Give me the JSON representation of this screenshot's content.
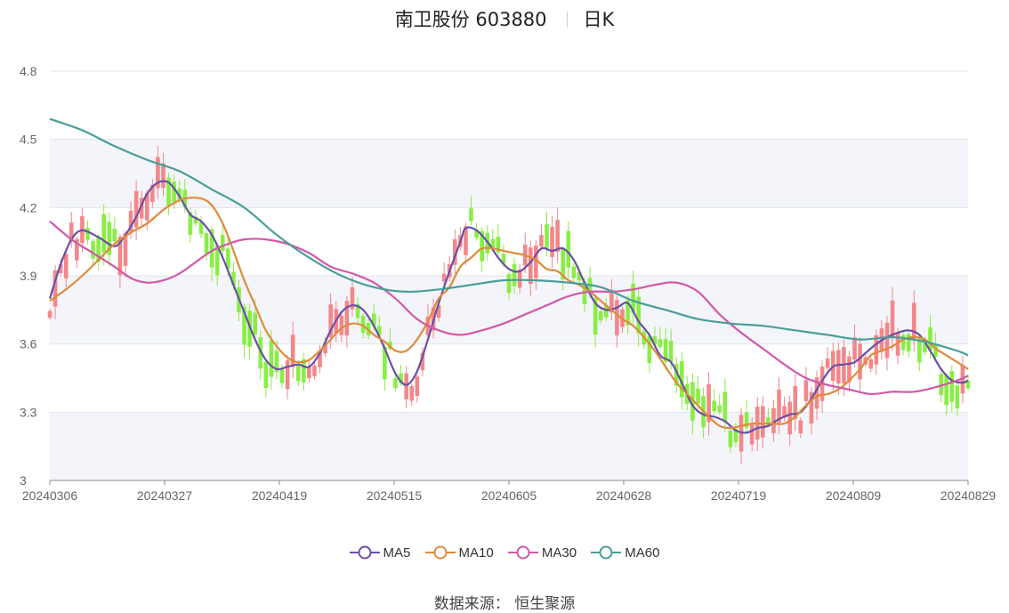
{
  "header": {
    "stock": "南卫股份 603880",
    "period": "日K"
  },
  "footer": {
    "label": "数据来源：",
    "source": "恒生聚源"
  },
  "chart_data": {
    "type": "candlestick",
    "y_ticks": [
      "3",
      "3.3",
      "3.6",
      "3.9",
      "4.2",
      "4.5",
      "4.8"
    ],
    "ylim": [
      3,
      4.8
    ],
    "x_ticks": [
      "20240306",
      "20240327",
      "20240419",
      "20240515",
      "20240605",
      "20240628",
      "20240719",
      "20240809",
      "20240829"
    ],
    "up_color": "#f2878a",
    "down_color": "#88ee44",
    "band_color": "#f4f5fa",
    "series": [
      {
        "name": "MA5",
        "color": "#6b4fa8",
        "points": [
          [
            0,
            3.8
          ],
          [
            2,
            3.95
          ],
          [
            4,
            4.06
          ],
          [
            6,
            4.1
          ],
          [
            9,
            4.07
          ],
          [
            12,
            4.03
          ],
          [
            14,
            4.08
          ],
          [
            16,
            4.16
          ],
          [
            18,
            4.26
          ],
          [
            20,
            4.31
          ],
          [
            22,
            4.31
          ],
          [
            24,
            4.25
          ],
          [
            26,
            4.17
          ],
          [
            28,
            4.14
          ],
          [
            30,
            4.08
          ],
          [
            32,
            3.98
          ],
          [
            34,
            3.86
          ],
          [
            36,
            3.74
          ],
          [
            38,
            3.62
          ],
          [
            40,
            3.53
          ],
          [
            42,
            3.49
          ],
          [
            44,
            3.5
          ],
          [
            46,
            3.51
          ],
          [
            48,
            3.5
          ],
          [
            50,
            3.56
          ],
          [
            52,
            3.66
          ],
          [
            54,
            3.74
          ],
          [
            56,
            3.77
          ],
          [
            58,
            3.75
          ],
          [
            60,
            3.68
          ],
          [
            62,
            3.58
          ],
          [
            64,
            3.47
          ],
          [
            66,
            3.42
          ],
          [
            68,
            3.48
          ],
          [
            70,
            3.62
          ],
          [
            72,
            3.78
          ],
          [
            74,
            3.92
          ],
          [
            76,
            4.05
          ],
          [
            77,
            4.11
          ],
          [
            79,
            4.1
          ],
          [
            81,
            4.05
          ],
          [
            83,
            3.98
          ],
          [
            85,
            3.93
          ],
          [
            87,
            3.92
          ],
          [
            89,
            3.96
          ],
          [
            91,
            4.02
          ],
          [
            93,
            4.01
          ],
          [
            95,
            4.02
          ],
          [
            97,
            3.97
          ],
          [
            99,
            3.87
          ],
          [
            101,
            3.78
          ],
          [
            103,
            3.75
          ],
          [
            105,
            3.76
          ],
          [
            107,
            3.78
          ],
          [
            109,
            3.7
          ],
          [
            111,
            3.64
          ],
          [
            113,
            3.55
          ],
          [
            115,
            3.52
          ],
          [
            117,
            3.43
          ],
          [
            119,
            3.33
          ],
          [
            121,
            3.29
          ],
          [
            123,
            3.28
          ],
          [
            125,
            3.26
          ],
          [
            127,
            3.22
          ],
          [
            129,
            3.21
          ],
          [
            131,
            3.23
          ],
          [
            133,
            3.24
          ],
          [
            135,
            3.27
          ],
          [
            137,
            3.29
          ],
          [
            139,
            3.3
          ],
          [
            141,
            3.36
          ],
          [
            143,
            3.44
          ],
          [
            145,
            3.5
          ],
          [
            147,
            3.51
          ],
          [
            149,
            3.52
          ],
          [
            151,
            3.56
          ],
          [
            153,
            3.6
          ],
          [
            155,
            3.63
          ],
          [
            157,
            3.65
          ],
          [
            159,
            3.66
          ],
          [
            161,
            3.64
          ],
          [
            163,
            3.57
          ],
          [
            165,
            3.49
          ],
          [
            167,
            3.44
          ],
          [
            169,
            3.43
          ],
          [
            170,
            3.44
          ]
        ]
      },
      {
        "name": "MA10",
        "color": "#e08a3a",
        "points": [
          [
            0,
            3.79
          ],
          [
            3,
            3.84
          ],
          [
            6,
            3.9
          ],
          [
            9,
            3.97
          ],
          [
            12,
            4.04
          ],
          [
            15,
            4.09
          ],
          [
            18,
            4.13
          ],
          [
            21,
            4.19
          ],
          [
            23,
            4.22
          ],
          [
            25,
            4.24
          ],
          [
            28,
            4.24
          ],
          [
            30,
            4.21
          ],
          [
            32,
            4.13
          ],
          [
            34,
            4.01
          ],
          [
            36,
            3.88
          ],
          [
            38,
            3.77
          ],
          [
            40,
            3.66
          ],
          [
            42,
            3.59
          ],
          [
            44,
            3.54
          ],
          [
            46,
            3.52
          ],
          [
            48,
            3.53
          ],
          [
            50,
            3.57
          ],
          [
            52,
            3.62
          ],
          [
            54,
            3.67
          ],
          [
            56,
            3.69
          ],
          [
            58,
            3.68
          ],
          [
            60,
            3.64
          ],
          [
            62,
            3.61
          ],
          [
            64,
            3.57
          ],
          [
            66,
            3.57
          ],
          [
            68,
            3.62
          ],
          [
            70,
            3.7
          ],
          [
            72,
            3.8
          ],
          [
            74,
            3.85
          ],
          [
            76,
            3.94
          ],
          [
            78,
            3.98
          ],
          [
            80,
            4.02
          ],
          [
            82,
            4.02
          ],
          [
            84,
            4.01
          ],
          [
            86,
            4.0
          ],
          [
            88,
            3.99
          ],
          [
            90,
            3.97
          ],
          [
            92,
            3.93
          ],
          [
            94,
            3.92
          ],
          [
            96,
            3.88
          ],
          [
            98,
            3.86
          ],
          [
            100,
            3.83
          ],
          [
            102,
            3.79
          ],
          [
            104,
            3.75
          ],
          [
            106,
            3.71
          ],
          [
            108,
            3.68
          ],
          [
            110,
            3.63
          ],
          [
            112,
            3.57
          ],
          [
            114,
            3.5
          ],
          [
            116,
            3.43
          ],
          [
            118,
            3.38
          ],
          [
            120,
            3.33
          ],
          [
            122,
            3.28
          ],
          [
            124,
            3.24
          ],
          [
            126,
            3.23
          ],
          [
            128,
            3.24
          ],
          [
            130,
            3.25
          ],
          [
            132,
            3.25
          ],
          [
            134,
            3.25
          ],
          [
            136,
            3.25
          ],
          [
            138,
            3.28
          ],
          [
            140,
            3.33
          ],
          [
            142,
            3.37
          ],
          [
            144,
            3.38
          ],
          [
            146,
            3.4
          ],
          [
            148,
            3.44
          ],
          [
            150,
            3.49
          ],
          [
            152,
            3.55
          ],
          [
            154,
            3.57
          ],
          [
            156,
            3.59
          ],
          [
            158,
            3.62
          ],
          [
            160,
            3.63
          ],
          [
            162,
            3.62
          ],
          [
            164,
            3.58
          ],
          [
            166,
            3.55
          ],
          [
            168,
            3.52
          ],
          [
            170,
            3.49
          ]
        ]
      },
      {
        "name": "MA30",
        "color": "#d159a8",
        "points": [
          [
            0,
            4.14
          ],
          [
            4,
            4.06
          ],
          [
            8,
            4.0
          ],
          [
            12,
            3.94
          ],
          [
            15,
            3.89
          ],
          [
            18,
            3.87
          ],
          [
            21,
            3.88
          ],
          [
            24,
            3.91
          ],
          [
            27,
            3.96
          ],
          [
            30,
            4.01
          ],
          [
            33,
            4.04
          ],
          [
            36,
            4.06
          ],
          [
            40,
            4.06
          ],
          [
            44,
            4.04
          ],
          [
            48,
            4.0
          ],
          [
            52,
            3.94
          ],
          [
            56,
            3.91
          ],
          [
            60,
            3.87
          ],
          [
            64,
            3.8
          ],
          [
            68,
            3.71
          ],
          [
            72,
            3.66
          ],
          [
            76,
            3.64
          ],
          [
            80,
            3.66
          ],
          [
            84,
            3.69
          ],
          [
            88,
            3.73
          ],
          [
            92,
            3.77
          ],
          [
            96,
            3.81
          ],
          [
            100,
            3.83
          ],
          [
            104,
            3.83
          ],
          [
            108,
            3.84
          ],
          [
            112,
            3.86
          ],
          [
            116,
            3.87
          ],
          [
            120,
            3.83
          ],
          [
            124,
            3.73
          ],
          [
            128,
            3.65
          ],
          [
            132,
            3.58
          ],
          [
            136,
            3.51
          ],
          [
            140,
            3.45
          ],
          [
            144,
            3.42
          ],
          [
            148,
            3.4
          ],
          [
            152,
            3.38
          ],
          [
            156,
            3.39
          ],
          [
            160,
            3.39
          ],
          [
            164,
            3.41
          ],
          [
            168,
            3.44
          ],
          [
            170,
            3.46
          ]
        ]
      },
      {
        "name": "MA60",
        "color": "#4a9e9a",
        "points": [
          [
            0,
            4.59
          ],
          [
            6,
            4.54
          ],
          [
            12,
            4.47
          ],
          [
            18,
            4.41
          ],
          [
            24,
            4.36
          ],
          [
            30,
            4.28
          ],
          [
            36,
            4.2
          ],
          [
            42,
            4.08
          ],
          [
            48,
            3.98
          ],
          [
            54,
            3.9
          ],
          [
            60,
            3.85
          ],
          [
            66,
            3.83
          ],
          [
            72,
            3.84
          ],
          [
            78,
            3.86
          ],
          [
            84,
            3.88
          ],
          [
            90,
            3.88
          ],
          [
            96,
            3.87
          ],
          [
            102,
            3.85
          ],
          [
            108,
            3.79
          ],
          [
            114,
            3.75
          ],
          [
            120,
            3.71
          ],
          [
            126,
            3.69
          ],
          [
            132,
            3.68
          ],
          [
            138,
            3.66
          ],
          [
            144,
            3.64
          ],
          [
            150,
            3.62
          ],
          [
            156,
            3.63
          ],
          [
            162,
            3.61
          ],
          [
            168,
            3.57
          ],
          [
            170,
            3.55
          ]
        ]
      }
    ]
  }
}
